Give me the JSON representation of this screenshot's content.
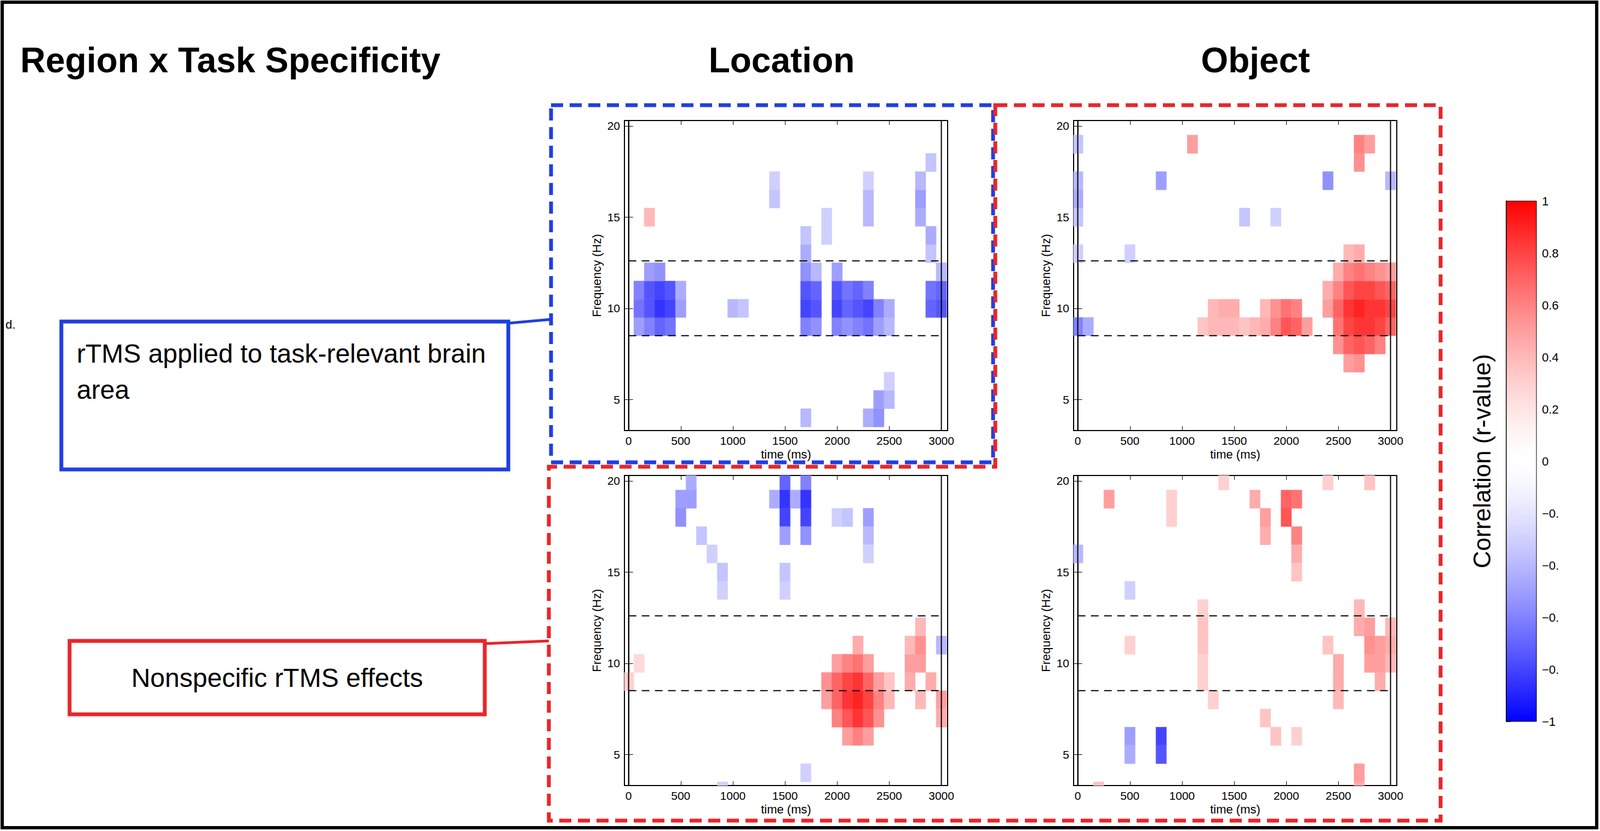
{
  "title": "Region x Task Specificity",
  "column_titles": [
    "Location",
    "Object"
  ],
  "edge_text": "d.",
  "callouts": [
    {
      "text": "rTMS applied to task-relevant brain area",
      "color": "#1f3fe0"
    },
    {
      "text": "Nonspecific rTMS effects",
      "color": "#e8262a"
    }
  ],
  "colorbar": {
    "title": "Correlation (r-value)",
    "range": [
      -1,
      1
    ],
    "ticks": [
      1,
      0.8,
      0.6,
      0.4,
      0.2,
      0,
      {
        "value": -0.2,
        "label": "−0."
      },
      {
        "value": -0.4,
        "label": "−0."
      },
      {
        "value": -0.6,
        "label": "−0."
      },
      {
        "value": -0.8,
        "label": "−0."
      },
      {
        "value": -1,
        "label": "−1"
      }
    ],
    "colors": [
      "#0000ff",
      "#ffffff",
      "#ff0000"
    ]
  },
  "chart_data": [
    {
      "type": "heatmap",
      "column": "Location",
      "xlabel": "time (ms)",
      "ylabel": "Frequency (Hz)",
      "xlim": [
        -40,
        3060
      ],
      "ylim": [
        3.3,
        20.3
      ],
      "xticks": [
        0,
        500,
        1000,
        1500,
        2000,
        2500,
        3000
      ],
      "yticks": [
        5,
        10,
        15,
        20
      ],
      "band": [
        8.5,
        12.6
      ],
      "event_times": [
        0,
        3000
      ],
      "cells": [
        [
          100,
          9,
          -0.5
        ],
        [
          100,
          10,
          -0.65
        ],
        [
          100,
          11,
          -0.6
        ],
        [
          200,
          9,
          -0.6
        ],
        [
          200,
          10,
          -0.75
        ],
        [
          200,
          11,
          -0.75
        ],
        [
          200,
          12,
          -0.5
        ],
        [
          300,
          9,
          -0.7
        ],
        [
          300,
          10,
          -0.85
        ],
        [
          300,
          11,
          -0.8
        ],
        [
          300,
          12,
          -0.55
        ],
        [
          400,
          9,
          -0.65
        ],
        [
          400,
          10,
          -0.8
        ],
        [
          400,
          11,
          -0.75
        ],
        [
          500,
          10,
          -0.5
        ],
        [
          500,
          11,
          -0.45
        ],
        [
          1000,
          10,
          -0.4
        ],
        [
          1100,
          10,
          -0.35
        ],
        [
          1400,
          16,
          -0.35
        ],
        [
          1400,
          17,
          -0.3
        ],
        [
          1700,
          9,
          -0.6
        ],
        [
          1700,
          10,
          -0.8
        ],
        [
          1700,
          11,
          -0.75
        ],
        [
          1700,
          12,
          -0.55
        ],
        [
          1700,
          13,
          -0.45
        ],
        [
          1700,
          14,
          -0.35
        ],
        [
          1800,
          9,
          -0.55
        ],
        [
          1800,
          10,
          -0.75
        ],
        [
          1800,
          11,
          -0.7
        ],
        [
          1800,
          12,
          -0.4
        ],
        [
          1700,
          4,
          -0.4
        ],
        [
          1900,
          15,
          -0.3
        ],
        [
          1900,
          14,
          -0.3
        ],
        [
          2000,
          9,
          -0.6
        ],
        [
          2000,
          10,
          -0.8
        ],
        [
          2000,
          11,
          -0.75
        ],
        [
          2000,
          12,
          -0.5
        ],
        [
          2100,
          9,
          -0.55
        ],
        [
          2100,
          10,
          -0.7
        ],
        [
          2100,
          11,
          -0.65
        ],
        [
          2200,
          9,
          -0.6
        ],
        [
          2200,
          10,
          -0.75
        ],
        [
          2200,
          11,
          -0.7
        ],
        [
          2300,
          9,
          -0.65
        ],
        [
          2300,
          10,
          -0.8
        ],
        [
          2300,
          11,
          -0.6
        ],
        [
          2300,
          15,
          -0.4
        ],
        [
          2300,
          16,
          -0.4
        ],
        [
          2300,
          17,
          -0.3
        ],
        [
          2400,
          9,
          -0.5
        ],
        [
          2400,
          10,
          -0.6
        ],
        [
          2500,
          9,
          -0.4
        ],
        [
          2500,
          10,
          -0.45
        ],
        [
          2300,
          4,
          -0.45
        ],
        [
          2400,
          4,
          -0.55
        ],
        [
          2400,
          5,
          -0.5
        ],
        [
          2500,
          5,
          -0.4
        ],
        [
          2500,
          6,
          -0.3
        ],
        [
          2800,
          15,
          -0.45
        ],
        [
          2800,
          16,
          -0.5
        ],
        [
          2800,
          17,
          -0.4
        ],
        [
          2900,
          13,
          -0.35
        ],
        [
          2900,
          14,
          -0.45
        ],
        [
          2900,
          18,
          -0.35
        ],
        [
          2900,
          10,
          -0.7
        ],
        [
          2900,
          11,
          -0.65
        ],
        [
          3000,
          10,
          -0.75
        ],
        [
          3000,
          11,
          -0.7
        ],
        [
          3000,
          12,
          -0.4
        ],
        [
          200,
          15,
          0.4
        ]
      ]
    },
    {
      "type": "heatmap",
      "column": "Object",
      "xlabel": "time (ms)",
      "ylabel": "Frequency (Hz)",
      "xlim": [
        -40,
        3060
      ],
      "ylim": [
        3.3,
        20.3
      ],
      "xticks": [
        0,
        500,
        1000,
        1500,
        2000,
        2500,
        3000
      ],
      "yticks": [
        5,
        10,
        15,
        20
      ],
      "band": [
        8.5,
        12.6
      ],
      "event_times": [
        0,
        3000
      ],
      "cells": [
        [
          0,
          19,
          -0.35
        ],
        [
          0,
          17,
          -0.4
        ],
        [
          0,
          16,
          -0.45
        ],
        [
          0,
          15,
          -0.35
        ],
        [
          0,
          13,
          -0.3
        ],
        [
          0,
          9,
          -0.6
        ],
        [
          100,
          9,
          -0.45
        ],
        [
          500,
          13,
          -0.3
        ],
        [
          800,
          17,
          -0.5
        ],
        [
          1100,
          19,
          0.5
        ],
        [
          1600,
          15,
          -0.35
        ],
        [
          1900,
          15,
          -0.3
        ],
        [
          2400,
          17,
          -0.55
        ],
        [
          2700,
          19,
          0.6
        ],
        [
          2700,
          18,
          0.55
        ],
        [
          2800,
          19,
          0.5
        ],
        [
          1200,
          9,
          0.35
        ],
        [
          1300,
          10,
          0.4
        ],
        [
          1300,
          9,
          0.4
        ],
        [
          1400,
          10,
          0.45
        ],
        [
          1400,
          9,
          0.4
        ],
        [
          1500,
          10,
          0.45
        ],
        [
          1500,
          9,
          0.4
        ],
        [
          1600,
          9,
          0.35
        ],
        [
          1700,
          9,
          0.4
        ],
        [
          1800,
          9,
          0.45
        ],
        [
          1800,
          10,
          0.4
        ],
        [
          1900,
          9,
          0.6
        ],
        [
          1900,
          10,
          0.55
        ],
        [
          2000,
          9,
          0.75
        ],
        [
          2000,
          10,
          0.65
        ],
        [
          2100,
          9,
          0.7
        ],
        [
          2100,
          10,
          0.6
        ],
        [
          2200,
          9,
          0.5
        ],
        [
          2400,
          10,
          0.5
        ],
        [
          2400,
          11,
          0.45
        ],
        [
          2500,
          8,
          0.55
        ],
        [
          2500,
          9,
          0.65
        ],
        [
          2500,
          10,
          0.7
        ],
        [
          2500,
          11,
          0.6
        ],
        [
          2500,
          12,
          0.45
        ],
        [
          2600,
          7,
          0.5
        ],
        [
          2600,
          8,
          0.7
        ],
        [
          2600,
          9,
          0.8
        ],
        [
          2600,
          10,
          0.85
        ],
        [
          2600,
          11,
          0.75
        ],
        [
          2600,
          12,
          0.6
        ],
        [
          2600,
          13,
          0.4
        ],
        [
          2700,
          7,
          0.55
        ],
        [
          2700,
          8,
          0.75
        ],
        [
          2700,
          9,
          0.85
        ],
        [
          2700,
          10,
          0.9
        ],
        [
          2700,
          11,
          0.8
        ],
        [
          2700,
          12,
          0.65
        ],
        [
          2700,
          13,
          0.45
        ],
        [
          2800,
          8,
          0.7
        ],
        [
          2800,
          9,
          0.85
        ],
        [
          2800,
          10,
          0.85
        ],
        [
          2800,
          11,
          0.8
        ],
        [
          2800,
          12,
          0.6
        ],
        [
          2900,
          8,
          0.6
        ],
        [
          2900,
          9,
          0.8
        ],
        [
          2900,
          10,
          0.85
        ],
        [
          2900,
          11,
          0.75
        ],
        [
          2900,
          12,
          0.55
        ],
        [
          3000,
          9,
          0.7
        ],
        [
          3000,
          10,
          0.8
        ],
        [
          3000,
          11,
          0.7
        ],
        [
          3000,
          12,
          0.5
        ],
        [
          3000,
          17,
          -0.4
        ]
      ]
    },
    {
      "type": "heatmap",
      "column": "Location",
      "xlabel": "time (ms)",
      "ylabel": "Frequency (Hz)",
      "xlim": [
        -40,
        3060
      ],
      "ylim": [
        3.3,
        20.3
      ],
      "xticks": [
        0,
        500,
        1000,
        1500,
        2000,
        2500,
        3000
      ],
      "yticks": [
        5,
        10,
        15,
        20
      ],
      "band": [
        8.5,
        12.6
      ],
      "event_times": [
        0,
        3000
      ],
      "cells": [
        [
          0,
          9,
          0.3
        ],
        [
          100,
          10,
          0.25
        ],
        [
          500,
          19,
          -0.5
        ],
        [
          500,
          18,
          -0.55
        ],
        [
          600,
          20,
          -0.45
        ],
        [
          600,
          19,
          -0.5
        ],
        [
          700,
          17,
          -0.35
        ],
        [
          800,
          16,
          -0.3
        ],
        [
          900,
          15,
          -0.35
        ],
        [
          900,
          14,
          -0.3
        ],
        [
          1400,
          19,
          -0.45
        ],
        [
          1500,
          20,
          -0.7
        ],
        [
          1500,
          19,
          -0.85
        ],
        [
          1500,
          18,
          -0.8
        ],
        [
          1500,
          17,
          -0.5
        ],
        [
          1500,
          15,
          -0.35
        ],
        [
          1500,
          14,
          -0.3
        ],
        [
          1600,
          19,
          -0.45
        ],
        [
          1700,
          20,
          -0.6
        ],
        [
          1700,
          19,
          -0.85
        ],
        [
          1700,
          18,
          -0.8
        ],
        [
          1700,
          17,
          -0.55
        ],
        [
          2000,
          18,
          -0.3
        ],
        [
          2100,
          18,
          -0.35
        ],
        [
          2300,
          18,
          -0.5
        ],
        [
          2300,
          17,
          -0.4
        ],
        [
          2300,
          16,
          -0.3
        ],
        [
          1900,
          8,
          0.5
        ],
        [
          1900,
          9,
          0.55
        ],
        [
          2000,
          7,
          0.6
        ],
        [
          2000,
          8,
          0.7
        ],
        [
          2000,
          9,
          0.7
        ],
        [
          2000,
          10,
          0.5
        ],
        [
          2100,
          6,
          0.5
        ],
        [
          2100,
          7,
          0.75
        ],
        [
          2100,
          8,
          0.85
        ],
        [
          2100,
          9,
          0.8
        ],
        [
          2100,
          10,
          0.6
        ],
        [
          2200,
          6,
          0.6
        ],
        [
          2200,
          7,
          0.85
        ],
        [
          2200,
          8,
          0.9
        ],
        [
          2200,
          9,
          0.85
        ],
        [
          2200,
          10,
          0.65
        ],
        [
          2200,
          11,
          0.45
        ],
        [
          2300,
          6,
          0.5
        ],
        [
          2300,
          7,
          0.75
        ],
        [
          2300,
          8,
          0.8
        ],
        [
          2300,
          9,
          0.7
        ],
        [
          2300,
          10,
          0.5
        ],
        [
          2400,
          7,
          0.55
        ],
        [
          2400,
          8,
          0.6
        ],
        [
          2400,
          9,
          0.5
        ],
        [
          2500,
          8,
          0.4
        ],
        [
          2500,
          9,
          0.35
        ],
        [
          2700,
          9,
          0.45
        ],
        [
          2700,
          10,
          0.5
        ],
        [
          2700,
          11,
          0.4
        ],
        [
          2800,
          8,
          0.4
        ],
        [
          2800,
          10,
          0.5
        ],
        [
          2800,
          11,
          0.55
        ],
        [
          2800,
          12,
          0.4
        ],
        [
          2900,
          9,
          0.45
        ],
        [
          3000,
          8,
          0.5
        ],
        [
          3000,
          7,
          0.45
        ],
        [
          3000,
          11,
          -0.4
        ],
        [
          900,
          3,
          -0.3
        ],
        [
          1700,
          4,
          -0.3
        ]
      ]
    },
    {
      "type": "heatmap",
      "column": "Object",
      "xlabel": "time (ms)",
      "ylabel": "Frequency (Hz)",
      "xlim": [
        -40,
        3060
      ],
      "ylim": [
        3.3,
        20.3
      ],
      "xticks": [
        0,
        500,
        1000,
        1500,
        2000,
        2500,
        3000
      ],
      "yticks": [
        5,
        10,
        15,
        20
      ],
      "band": [
        8.5,
        12.6
      ],
      "event_times": [
        0,
        3000
      ],
      "cells": [
        [
          300,
          19,
          0.5
        ],
        [
          900,
          19,
          0.3
        ],
        [
          900,
          18,
          0.3
        ],
        [
          1400,
          20,
          0.3
        ],
        [
          1700,
          19,
          0.45
        ],
        [
          1800,
          18,
          0.5
        ],
        [
          1800,
          17,
          0.45
        ],
        [
          2000,
          19,
          0.7
        ],
        [
          2000,
          18,
          0.75
        ],
        [
          2100,
          19,
          0.65
        ],
        [
          2100,
          17,
          0.6
        ],
        [
          2100,
          16,
          0.45
        ],
        [
          2100,
          15,
          0.35
        ],
        [
          2400,
          20,
          0.3
        ],
        [
          2800,
          20,
          0.35
        ],
        [
          0,
          16,
          -0.4
        ],
        [
          500,
          14,
          -0.3
        ],
        [
          500,
          11,
          0.3
        ],
        [
          1200,
          13,
          0.3
        ],
        [
          1200,
          12,
          0.35
        ],
        [
          1200,
          11,
          0.35
        ],
        [
          1200,
          10,
          0.3
        ],
        [
          1200,
          9,
          0.3
        ],
        [
          1300,
          8,
          0.3
        ],
        [
          1800,
          7,
          0.35
        ],
        [
          1900,
          6,
          0.35
        ],
        [
          2100,
          6,
          0.3
        ],
        [
          2400,
          11,
          0.35
        ],
        [
          2500,
          10,
          0.45
        ],
        [
          2500,
          9,
          0.45
        ],
        [
          2500,
          8,
          0.4
        ],
        [
          2700,
          13,
          0.4
        ],
        [
          2700,
          12,
          0.45
        ],
        [
          2800,
          12,
          0.5
        ],
        [
          2800,
          11,
          0.55
        ],
        [
          2800,
          10,
          0.5
        ],
        [
          2900,
          11,
          0.5
        ],
        [
          2900,
          10,
          0.5
        ],
        [
          2900,
          9,
          0.45
        ],
        [
          3000,
          12,
          0.4
        ],
        [
          3000,
          11,
          0.45
        ],
        [
          3000,
          10,
          0.4
        ],
        [
          2700,
          4,
          0.5
        ],
        [
          2700,
          3,
          0.45
        ],
        [
          500,
          6,
          -0.5
        ],
        [
          500,
          5,
          -0.45
        ],
        [
          800,
          6,
          -0.8
        ],
        [
          800,
          5,
          -0.75
        ],
        [
          200,
          3,
          0.35
        ]
      ]
    }
  ]
}
